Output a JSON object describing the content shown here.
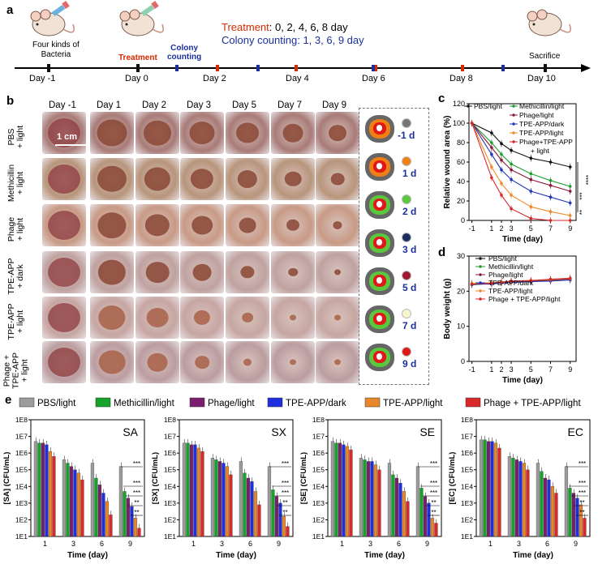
{
  "panel_a": {
    "label": "a",
    "mouse_caption": "Four kinds of\nBacteria",
    "caption_line1": "Four kinds of",
    "caption_line2": "Bacteria",
    "treatment_label": "Treatment",
    "colony_label_1": "Colony",
    "colony_label_2": "counting",
    "treatment_schedule_label": "Treatment",
    "treatment_schedule_value": ": 0, 2, 4, 6, 8 day",
    "colony_schedule": "Colony counting: 1, 3, 6, 9 day",
    "sacrifice": "Sacrifice",
    "days": [
      "Day -1",
      "Day 0",
      "Day 2",
      "Day 4",
      "Day 6",
      "Day 8",
      "Day 10"
    ],
    "colors": {
      "treatment": "#d62a00",
      "colony": "#1b2f9c"
    }
  },
  "panel_b": {
    "label": "b",
    "columns": [
      "Day -1",
      "Day 1",
      "Day 2",
      "Day 3",
      "Day 5",
      "Day 7",
      "Day 9"
    ],
    "rows": [
      {
        "l1": "PBS",
        "l2": "+ light",
        "l3": ""
      },
      {
        "l1": "Methicillin",
        "l2": "+ light",
        "l3": ""
      },
      {
        "l1": "Phage",
        "l2": "+ light",
        "l3": ""
      },
      {
        "l1": "TPE-APP",
        "l2": "+ dark",
        "l3": ""
      },
      {
        "l1": "TPE-APP",
        "l2": "+ light",
        "l3": ""
      },
      {
        "l1": "Phage +",
        "l2": "TPE-APP",
        "l3": "+ light"
      }
    ],
    "scale_bar": "1 cm",
    "legend_days": [
      "-1 d",
      "1 d",
      "2 d",
      "3 d",
      "5 d",
      "7 d",
      "9 d"
    ],
    "legend_colors": [
      "#777777",
      "#f07f14",
      "#5ac83c",
      "#1c2e5e",
      "#a31630",
      "#f5f5d0",
      "#e01818"
    ]
  },
  "chart_data": [
    {
      "id": "c",
      "type": "line",
      "label": "c",
      "xlabel": "Time (day)",
      "ylabel": "Relative wound area (%)",
      "x": [
        -1,
        1,
        2,
        3,
        5,
        7,
        9
      ],
      "xticks": [
        "-1",
        "1",
        "2",
        "3",
        "5",
        "7",
        "9"
      ],
      "ylim": [
        0,
        120
      ],
      "yticks": [
        "0",
        "20",
        "40",
        "60",
        "80",
        "100",
        "120"
      ],
      "significance": [
        "**",
        "***",
        "****"
      ],
      "series": [
        {
          "name": "PBS/light",
          "color": "#111111",
          "values": [
            100,
            90,
            79,
            72,
            64,
            60,
            55
          ]
        },
        {
          "name": "Methicillin/light",
          "color": "#1e9e2e",
          "values": [
            100,
            80,
            68,
            58,
            48,
            41,
            35
          ]
        },
        {
          "name": "Phage/light",
          "color": "#8b1a3a",
          "values": [
            100,
            75,
            62,
            52,
            42,
            36,
            30
          ]
        },
        {
          "name": "TPE-APP/dark",
          "color": "#2235b5",
          "values": [
            100,
            68,
            52,
            42,
            30,
            24,
            18
          ]
        },
        {
          "name": "TPE-APP/light",
          "color": "#ef8a2a",
          "values": [
            100,
            55,
            38,
            26,
            14,
            9,
            5
          ]
        },
        {
          "name": "Phage+TPE-APP\n+ light",
          "color": "#d42a2a",
          "values": [
            100,
            44,
            26,
            12,
            2,
            0,
            0
          ]
        }
      ],
      "legend_names": [
        "PBS/light",
        "Methicillin/light",
        "Phage/light",
        "TPE-APP/dark",
        "TPE-APP/light",
        "Phage+TPE-APP",
        "+ light"
      ]
    },
    {
      "id": "d",
      "type": "line",
      "label": "d",
      "xlabel": "Time (day)",
      "ylabel": "Body weight (g)",
      "x": [
        -1,
        1,
        2,
        3,
        5,
        7,
        9
      ],
      "xticks": [
        "-1",
        "1",
        "2",
        "3",
        "5",
        "7",
        "9"
      ],
      "ylim": [
        0,
        30
      ],
      "yticks": [
        "0",
        "10",
        "20",
        "30"
      ],
      "series": [
        {
          "name": "PBS/light",
          "color": "#111111",
          "values": [
            22.0,
            22.3,
            22.6,
            22.8,
            23.0,
            23.2,
            23.5
          ]
        },
        {
          "name": "Methicillin/light",
          "color": "#1e9e2e",
          "values": [
            21.8,
            22.2,
            22.5,
            22.7,
            22.9,
            23.1,
            23.3
          ]
        },
        {
          "name": "Phage/light",
          "color": "#8b1a3a",
          "values": [
            22.1,
            22.0,
            22.4,
            22.6,
            22.8,
            23.0,
            23.4
          ]
        },
        {
          "name": "TPE-APP/dark",
          "color": "#2235b5",
          "values": [
            21.9,
            22.1,
            22.3,
            22.5,
            22.7,
            22.9,
            23.2
          ]
        },
        {
          "name": "TPE-APP/light",
          "color": "#ef8a2a",
          "values": [
            22.2,
            22.4,
            22.6,
            22.8,
            23.1,
            23.3,
            23.6
          ]
        },
        {
          "name": "Phage + TPE-APP/light",
          "color": "#d42a2a",
          "values": [
            22.0,
            22.3,
            22.5,
            22.9,
            23.0,
            23.4,
            23.7
          ]
        }
      ]
    },
    {
      "id": "e",
      "type": "bar",
      "label": "e",
      "legend": [
        {
          "name": "PBS/light",
          "color": "#9c9c9c"
        },
        {
          "name": "Methicillin/light",
          "color": "#16a32a"
        },
        {
          "name": "Phage/light",
          "color": "#7a1e6e"
        },
        {
          "name": "TPE-APP/dark",
          "color": "#1f2fe0"
        },
        {
          "name": "TPE-APP/light",
          "color": "#e8862a"
        },
        {
          "name": "Phage + TPE-APP/light",
          "color": "#d8282a"
        }
      ],
      "categories": [
        "1",
        "3",
        "6",
        "9"
      ],
      "xlabel": "Time (day)",
      "ytick_labels": [
        "1E1",
        "1E2",
        "1E3",
        "1E4",
        "1E5",
        "1E6",
        "1E7",
        "1E8"
      ],
      "ylim_log10": [
        1,
        8
      ],
      "significance": [
        "***",
        "***",
        "***",
        "**",
        "**"
      ],
      "subplots": [
        {
          "name": "SA",
          "ylabel": "[SA] (CFU/mL)",
          "log10_values": [
            [
              6.7,
              6.6,
              6.6,
              6.5,
              6.1,
              5.8
            ],
            [
              5.6,
              5.4,
              5.2,
              5.0,
              4.8,
              4.4
            ],
            [
              5.4,
              4.5,
              4.1,
              3.6,
              3.1,
              2.3
            ],
            [
              5.2,
              3.7,
              3.3,
              2.8,
              2.1,
              1.5
            ]
          ]
        },
        {
          "name": "SX",
          "ylabel": "[SX] (CFU/mL)",
          "log10_values": [
            [
              6.6,
              6.6,
              6.5,
              6.5,
              6.3,
              6.1
            ],
            [
              5.7,
              5.6,
              5.5,
              5.4,
              5.2,
              4.7
            ],
            [
              5.5,
              4.8,
              4.5,
              4.3,
              3.7,
              2.9
            ],
            [
              5.2,
              3.8,
              3.4,
              3.0,
              2.2,
              1.6
            ]
          ]
        },
        {
          "name": "SE",
          "ylabel": "[SE] (CFU/mL)",
          "log10_values": [
            [
              6.7,
              6.6,
              6.6,
              6.5,
              6.4,
              6.2
            ],
            [
              5.7,
              5.6,
              5.5,
              5.5,
              5.3,
              5.0
            ],
            [
              5.4,
              4.7,
              4.5,
              4.2,
              3.7,
              3.1
            ],
            [
              5.2,
              3.9,
              3.4,
              3.0,
              2.1,
              1.8
            ]
          ]
        },
        {
          "name": "EC",
          "ylabel": "[EC] (CFU/mL)",
          "log10_values": [
            [
              6.8,
              6.8,
              6.7,
              6.7,
              6.6,
              6.3
            ],
            [
              5.8,
              5.7,
              5.6,
              5.5,
              5.4,
              5.0
            ],
            [
              5.4,
              4.9,
              4.5,
              4.4,
              4.0,
              3.6
            ],
            [
              5.2,
              3.9,
              3.6,
              3.3,
              2.9,
              2.1
            ]
          ]
        }
      ]
    }
  ]
}
